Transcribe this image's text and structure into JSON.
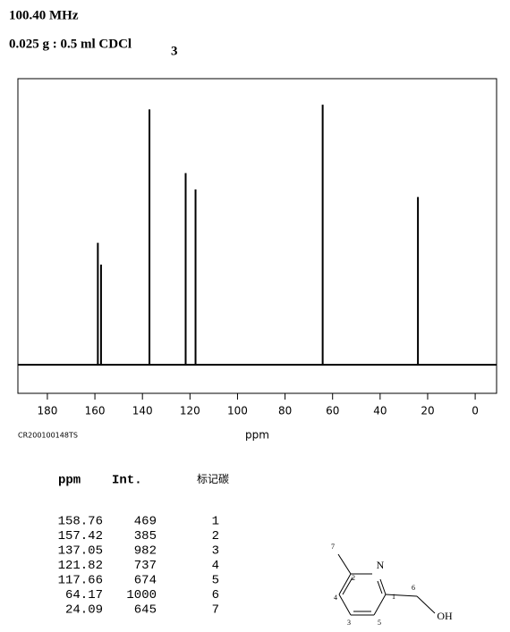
{
  "header": {
    "frequency": "100.40 MHz",
    "solvent": "0.025 g : 0.5 ml CDCl",
    "solvent_subscript": "3"
  },
  "chart_data": {
    "type": "stem",
    "x": [
      158.76,
      157.42,
      137.05,
      121.82,
      117.66,
      64.17,
      24.09
    ],
    "values": [
      469,
      385,
      982,
      737,
      674,
      1000,
      645
    ],
    "color": "#000000",
    "xlim": [
      192.4,
      -9
    ],
    "xticks": [
      180,
      160,
      140,
      120,
      100,
      80,
      60,
      40,
      20,
      0
    ],
    "ylim": [
      -110,
      1100
    ],
    "xlabel": "ppm",
    "code": "CR200100148TS"
  },
  "table": {
    "columns": [
      "ppm",
      "Int.",
      "标记碳"
    ],
    "rows": [
      [
        "158.76",
        "469",
        "1"
      ],
      [
        "157.42",
        "385",
        "2"
      ],
      [
        "137.05",
        "982",
        "3"
      ],
      [
        "121.82",
        "737",
        "4"
      ],
      [
        "117.66",
        "674",
        "5"
      ],
      [
        "64.17",
        "1000",
        "6"
      ],
      [
        "24.09",
        "645",
        "7"
      ]
    ]
  },
  "structure": {
    "atoms": {
      "n": "N",
      "oh": "OH"
    },
    "numbers": [
      "1",
      "2",
      "3",
      "4",
      "5",
      "6",
      "7"
    ]
  }
}
